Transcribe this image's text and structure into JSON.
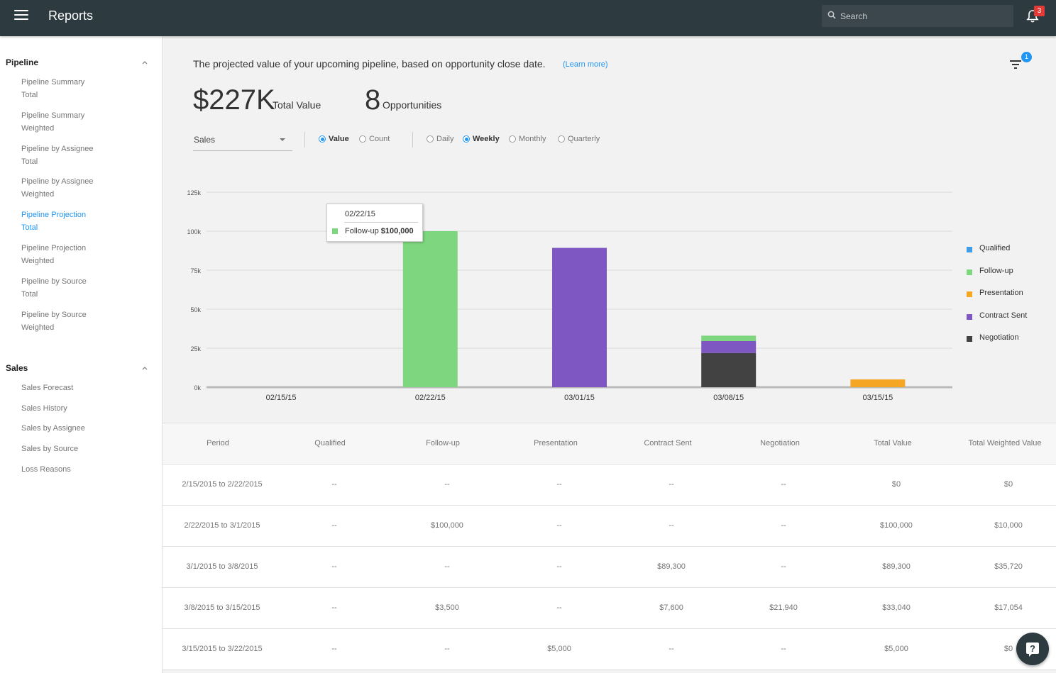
{
  "app": {
    "title": "Reports"
  },
  "search": {
    "placeholder": "Search"
  },
  "notifications": {
    "count": "3"
  },
  "sidebar": {
    "sections": [
      {
        "title": "Pipeline",
        "items": [
          {
            "line1": "Pipeline Summary",
            "line2": "Total",
            "active": false
          },
          {
            "line1": "Pipeline Summary",
            "line2": "Weighted",
            "active": false
          },
          {
            "line1": "Pipeline by Assignee",
            "line2": "Total",
            "active": false
          },
          {
            "line1": "Pipeline by Assignee",
            "line2": "Weighted",
            "active": false
          },
          {
            "line1": "Pipeline Projection",
            "line2": "Total",
            "active": true
          },
          {
            "line1": "Pipeline Projection",
            "line2": "Weighted",
            "active": false
          },
          {
            "line1": "Pipeline by Source",
            "line2": "Total",
            "active": false
          },
          {
            "line1": "Pipeline by Source",
            "line2": "Weighted",
            "active": false
          }
        ]
      },
      {
        "title": "Sales",
        "items": [
          {
            "line1": "Sales Forecast"
          },
          {
            "line1": "Sales History"
          },
          {
            "line1": "Sales by Assignee"
          },
          {
            "line1": "Sales by Source"
          },
          {
            "line1": "Loss Reasons"
          }
        ]
      }
    ]
  },
  "header": {
    "description": "The projected value of your upcoming pipeline, based on opportunity close date.",
    "learn_more": "(Learn more)",
    "filter_count": "1"
  },
  "summary": {
    "total_value": "$227K",
    "total_value_label": "Total Value",
    "opportunities": "8",
    "opportunities_label": "Opportunities"
  },
  "controls": {
    "pipeline_select": "Sales",
    "measure": [
      {
        "label": "Value",
        "selected": true
      },
      {
        "label": "Count",
        "selected": false
      }
    ],
    "period": [
      {
        "label": "Daily",
        "selected": false
      },
      {
        "label": "Weekly",
        "selected": true
      },
      {
        "label": "Monthly",
        "selected": false
      },
      {
        "label": "Quarterly",
        "selected": false
      }
    ]
  },
  "colors": {
    "Qualified": "#3f9ee8",
    "Follow-up": "#7ed67e",
    "Presentation": "#f5a623",
    "Contract Sent": "#7e57c2",
    "Negotiation": "#424242"
  },
  "chart_data": {
    "type": "bar",
    "stacked": true,
    "categories": [
      "02/15/15",
      "02/22/15",
      "03/01/15",
      "03/08/15",
      "03/15/15"
    ],
    "series": [
      {
        "name": "Qualified",
        "values": [
          0,
          0,
          0,
          0,
          0
        ]
      },
      {
        "name": "Follow-up",
        "values": [
          0,
          100000,
          0,
          3500,
          0
        ]
      },
      {
        "name": "Presentation",
        "values": [
          0,
          0,
          0,
          0,
          5000
        ]
      },
      {
        "name": "Contract Sent",
        "values": [
          0,
          0,
          89300,
          7600,
          0
        ]
      },
      {
        "name": "Negotiation",
        "values": [
          0,
          0,
          0,
          21940,
          0
        ]
      }
    ],
    "stack_order": [
      "Negotiation",
      "Contract Sent",
      "Follow-up",
      "Presentation",
      "Qualified"
    ],
    "ylim": [
      0,
      125000
    ],
    "yticks": [
      0,
      25000,
      50000,
      75000,
      100000,
      125000
    ],
    "ytick_labels": [
      "0k",
      "25k",
      "50k",
      "75k",
      "100k",
      "125k"
    ],
    "grid": true,
    "legend": "right",
    "tooltip": {
      "date": "02/22/15",
      "series": "Follow-up",
      "label": "Follow-up",
      "value": "$100,000"
    }
  },
  "table": {
    "columns": [
      "Period",
      "Qualified",
      "Follow-up",
      "Presentation",
      "Contract Sent",
      "Negotiation",
      "Total Value",
      "Total Weighted Value"
    ],
    "rows": [
      [
        "2/15/2015 to 2/22/2015",
        "--",
        "--",
        "--",
        "--",
        "--",
        "$0",
        "$0"
      ],
      [
        "2/22/2015 to 3/1/2015",
        "--",
        "$100,000",
        "--",
        "--",
        "--",
        "$100,000",
        "$10,000"
      ],
      [
        "3/1/2015 to 3/8/2015",
        "--",
        "--",
        "--",
        "$89,300",
        "--",
        "$89,300",
        "$35,720"
      ],
      [
        "3/8/2015 to 3/15/2015",
        "--",
        "$3,500",
        "--",
        "$7,600",
        "$21,940",
        "$33,040",
        "$17,054"
      ],
      [
        "3/15/2015 to 3/22/2015",
        "--",
        "--",
        "$5,000",
        "--",
        "--",
        "$5,000",
        "$0"
      ]
    ]
  }
}
